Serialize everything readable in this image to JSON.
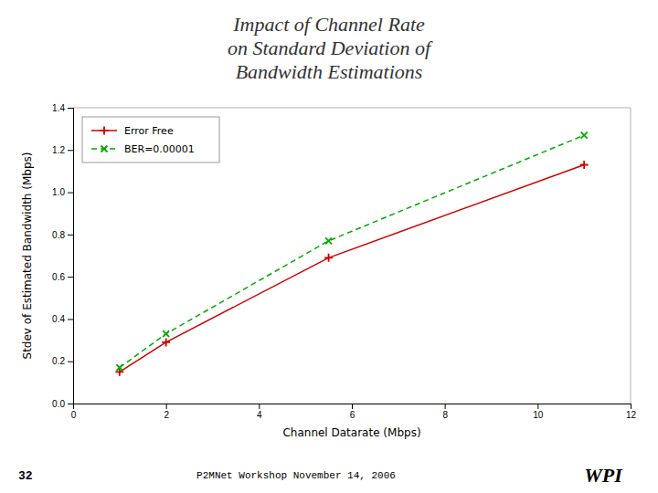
{
  "chart_data": {
    "type": "line",
    "title": "Impact of Channel Rate\non Standard Deviation of\nBandwidth Estimations",
    "x_label": "Channel Datarate (Mbps)",
    "y_label": "Stdev of Estimated Bandwidth (Mbps)",
    "x": [
      1,
      2,
      5.5,
      11
    ],
    "series": [
      {
        "name": "Error Free",
        "color": "#cc0000",
        "marker": "plus",
        "line_style": "solid",
        "values": [
          0.15,
          0.29,
          0.69,
          1.13
        ]
      },
      {
        "name": "BER=0.00001",
        "color": "#00aa00",
        "marker": "x",
        "line_style": "dashed",
        "values": [
          0.17,
          0.33,
          0.77,
          1.27
        ]
      }
    ],
    "xlim": [
      0,
      12
    ],
    "ylim": [
      0,
      1.4
    ],
    "xticks": [
      0,
      2,
      4,
      6,
      8,
      10,
      12
    ],
    "yticks": [
      {
        "value": 0,
        "label": "0.0"
      },
      0.2,
      0.4,
      0.6,
      0.8,
      {
        "value": 1.0,
        "label": "1.0"
      },
      1.2,
      1.4
    ],
    "grid": false,
    "legend": "upper left",
    "annotations": [
      "32",
      "P2MNet Workshop November 14, 2006",
      "WPI"
    ]
  }
}
